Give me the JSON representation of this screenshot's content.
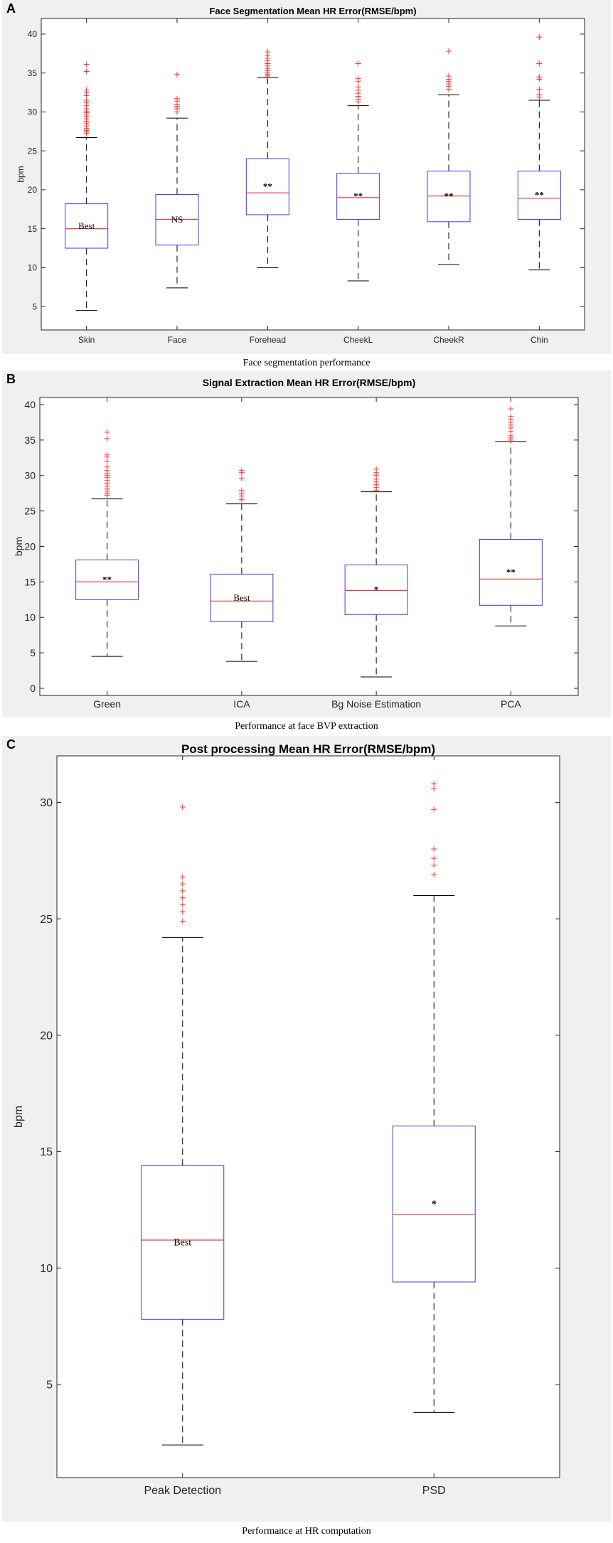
{
  "charts": [
    {
      "panel_label": "A",
      "caption": "Face segmentation performance",
      "chart_data": {
        "type": "boxplot",
        "title": "Face Segmentation Mean HR Error(RMSE/bpm)",
        "xlabel": "",
        "ylabel": "bpm",
        "ylim": [
          2,
          42
        ],
        "yticks": [
          "5",
          "10",
          "15",
          "20",
          "25",
          "30",
          "35",
          "40"
        ],
        "categories": [
          "Skin",
          "Face",
          "Forehead",
          "CheekL",
          "CheekR",
          "Chin"
        ],
        "boxes": [
          {
            "category": "Skin",
            "whisker_low": 4.5,
            "q1": 12.5,
            "median": 15.0,
            "q3": 18.2,
            "whisker_high": 26.7,
            "annotation": "Best",
            "outliers": [
              27.2,
              27.4,
              27.6,
              27.9,
              28.2,
              28.5,
              28.8,
              29.1,
              29.4,
              29.6,
              29.9,
              30.1,
              30.4,
              30.8,
              31.2,
              31.5,
              32.1,
              32.5,
              32.8,
              35.2,
              36.1
            ]
          },
          {
            "category": "Face",
            "whisker_low": 7.4,
            "q1": 12.9,
            "median": 16.2,
            "q3": 19.4,
            "whisker_high": 29.2,
            "annotation": "NS",
            "outliers": [
              30.0,
              30.4,
              30.7,
              31.0,
              31.4,
              31.7,
              34.8
            ]
          },
          {
            "category": "Forehead",
            "whisker_low": 10.0,
            "q1": 16.8,
            "median": 19.6,
            "q3": 24.0,
            "whisker_high": 34.4,
            "annotation": "**",
            "outliers": [
              34.6,
              34.8,
              35.0,
              35.3,
              35.6,
              35.9,
              36.2,
              36.6,
              36.9,
              37.3,
              37.7
            ]
          },
          {
            "category": "CheekL",
            "whisker_low": 8.3,
            "q1": 16.2,
            "median": 19.0,
            "q3": 22.1,
            "whisker_high": 30.8,
            "annotation": "**",
            "outliers": [
              31.3,
              31.6,
              32.0,
              32.4,
              32.8,
              33.2,
              33.9,
              34.3,
              36.2
            ]
          },
          {
            "category": "CheekR",
            "whisker_low": 10.4,
            "q1": 15.9,
            "median": 19.2,
            "q3": 22.4,
            "whisker_high": 32.2,
            "annotation": "**",
            "outliers": [
              32.9,
              33.3,
              33.6,
              33.9,
              34.2,
              34.6,
              37.8
            ]
          },
          {
            "category": "Chin",
            "whisker_low": 9.7,
            "q1": 16.2,
            "median": 18.9,
            "q3": 22.4,
            "whisker_high": 31.5,
            "annotation": "**",
            "outliers": [
              31.9,
              32.2,
              32.9,
              34.2,
              34.5,
              36.2,
              39.6
            ]
          }
        ]
      }
    },
    {
      "panel_label": "B",
      "caption": "Performance at face BVP extraction",
      "chart_data": {
        "type": "boxplot",
        "title": "Signal Extraction Mean HR Error(RMSE/bpm)",
        "xlabel": "",
        "ylabel": "bpm",
        "ylim": [
          -1,
          41
        ],
        "yticks": [
          "0",
          "5",
          "10",
          "15",
          "20",
          "25",
          "30",
          "35",
          "40"
        ],
        "categories": [
          "Green",
          "ICA",
          "Bg Noise Estimation",
          "PCA"
        ],
        "boxes": [
          {
            "category": "Green",
            "whisker_low": 4.5,
            "q1": 12.5,
            "median": 15.0,
            "q3": 18.1,
            "whisker_high": 26.7,
            "annotation": "**",
            "outliers": [
              27.2,
              27.5,
              27.8,
              28.1,
              28.5,
              28.9,
              29.3,
              29.7,
              30.0,
              30.3,
              30.7,
              31.2,
              32.0,
              32.6,
              32.9,
              35.2,
              36.1
            ]
          },
          {
            "category": "ICA",
            "whisker_low": 3.8,
            "q1": 9.4,
            "median": 12.3,
            "q3": 16.1,
            "whisker_high": 26.0,
            "annotation": "Best",
            "outliers": [
              26.6,
              27.1,
              27.5,
              27.9,
              29.6,
              30.4,
              30.7
            ]
          },
          {
            "category": "Bg Noise Estimation",
            "whisker_low": 1.6,
            "q1": 10.4,
            "median": 13.8,
            "q3": 17.4,
            "whisker_high": 27.7,
            "annotation": "*",
            "outliers": [
              27.9,
              28.3,
              28.7,
              29.1,
              29.5,
              30.0,
              30.4,
              30.9
            ]
          },
          {
            "category": "PCA",
            "whisker_low": 8.8,
            "q1": 11.7,
            "median": 15.4,
            "q3": 21.0,
            "whisker_high": 34.8,
            "annotation": "**",
            "outliers": [
              35.0,
              35.3,
              35.6,
              36.2,
              36.7,
              37.1,
              37.5,
              37.9,
              38.3,
              39.4
            ]
          }
        ]
      }
    },
    {
      "panel_label": "C",
      "caption": "Performance at HR computation",
      "chart_data": {
        "type": "boxplot",
        "title": "Post processing Mean HR Error(RMSE/bpm)",
        "xlabel": "",
        "ylabel": "bpm",
        "ylim": [
          1,
          32
        ],
        "yticks": [
          "5",
          "10",
          "15",
          "20",
          "25",
          "30"
        ],
        "categories": [
          "Peak Detection",
          "PSD"
        ],
        "boxes": [
          {
            "category": "Peak Detection",
            "whisker_low": 2.4,
            "q1": 7.8,
            "median": 11.2,
            "q3": 14.4,
            "whisker_high": 24.2,
            "annotation": "Best",
            "outliers": [
              24.9,
              25.3,
              25.6,
              25.9,
              26.2,
              26.5,
              26.8,
              29.8
            ]
          },
          {
            "category": "PSD",
            "whisker_low": 3.8,
            "q1": 9.4,
            "median": 12.3,
            "q3": 16.1,
            "whisker_high": 26.0,
            "annotation": "*",
            "outliers": [
              26.9,
              27.3,
              27.6,
              28.0,
              29.7,
              30.6,
              30.8
            ]
          }
        ]
      }
    }
  ]
}
